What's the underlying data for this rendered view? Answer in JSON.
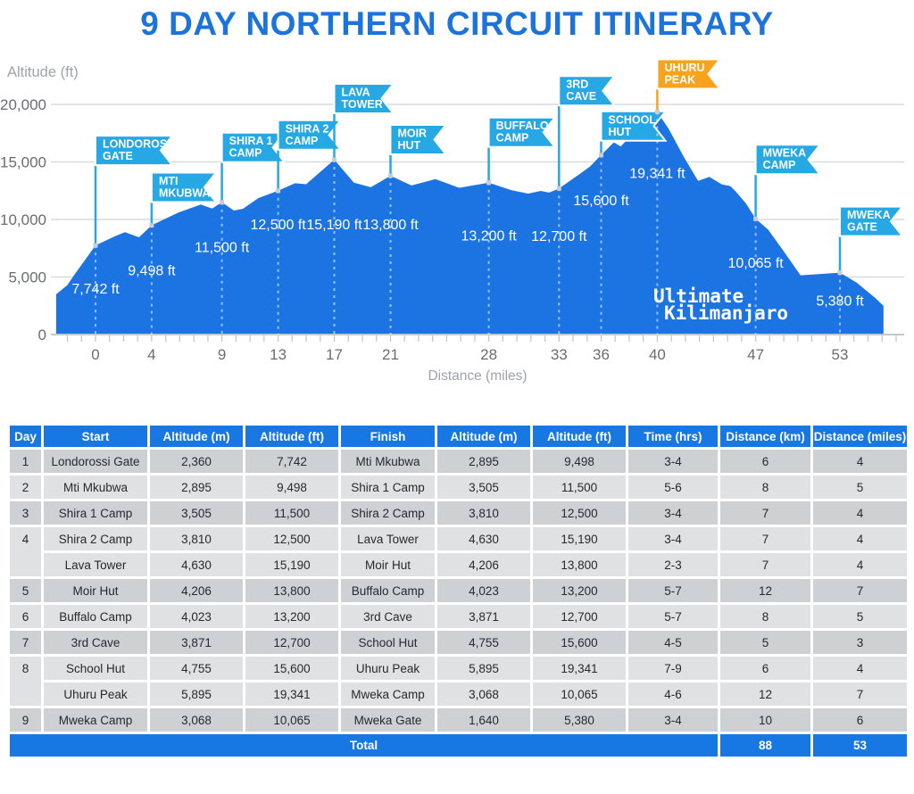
{
  "title": "9 DAY NORTHERN CIRCUIT ITINERARY",
  "colors": {
    "title_blue": "#1b73db",
    "area_blue": "#1c74e2",
    "flag_blue": "#25a8e4",
    "flag_orange": "#f9a21b",
    "table_header_blue": "#1777e3",
    "row_dark": "#cdd1d4",
    "row_light": "#dfe1e3",
    "gridline": "#d8dadd",
    "axis_line": "#c5c8cb",
    "tick_text": "#696c73",
    "axis_label_text": "#9fa2ac"
  },
  "chart_data": {
    "type": "area",
    "ylabel": "Altitude (ft)",
    "xlabel": "Distance (miles)",
    "ylim": [
      0,
      20000
    ],
    "grid": true,
    "watermark": [
      "Ultimate",
      "Kilimanjaro"
    ],
    "y_ticks": [
      {
        "value": 0,
        "label": "0"
      },
      {
        "value": 5000,
        "label": "5,000"
      },
      {
        "value": 10000,
        "label": "10,000"
      },
      {
        "value": 15000,
        "label": "15,000"
      },
      {
        "value": 20000,
        "label": "20,000"
      }
    ],
    "x_ticks": [
      {
        "mile": 0,
        "label": "0"
      },
      {
        "mile": 4,
        "label": "4"
      },
      {
        "mile": 9,
        "label": "9"
      },
      {
        "mile": 13,
        "label": "13"
      },
      {
        "mile": 17,
        "label": "17"
      },
      {
        "mile": 21,
        "label": "21"
      },
      {
        "mile": 28,
        "label": "28"
      },
      {
        "mile": 33,
        "label": "33"
      },
      {
        "mile": 36,
        "label": "36"
      },
      {
        "mile": 40,
        "label": "40"
      },
      {
        "mile": 47,
        "label": "47"
      },
      {
        "mile": 53,
        "label": "53"
      }
    ],
    "profile": [
      [
        -2.8,
        3500
      ],
      [
        -2,
        4300
      ],
      [
        -1.5,
        5200
      ],
      [
        0,
        7742
      ],
      [
        1.4,
        8550
      ],
      [
        2.1,
        8900
      ],
      [
        3.1,
        8450
      ],
      [
        4,
        9498
      ],
      [
        5.9,
        10600
      ],
      [
        7.5,
        11300
      ],
      [
        8.3,
        10950
      ],
      [
        9,
        11500
      ],
      [
        9.85,
        10775
      ],
      [
        10.5,
        10930
      ],
      [
        11.6,
        11860
      ],
      [
        13,
        12500
      ],
      [
        14.2,
        13150
      ],
      [
        15,
        13060
      ],
      [
        17,
        15190
      ],
      [
        18.4,
        13200
      ],
      [
        19.6,
        12800
      ],
      [
        21,
        13800
      ],
      [
        22.5,
        12950
      ],
      [
        24.2,
        13500
      ],
      [
        25.9,
        12750
      ],
      [
        28,
        13200
      ],
      [
        29.6,
        12550
      ],
      [
        30.8,
        12250
      ],
      [
        31.7,
        12480
      ],
      [
        32.3,
        12330
      ],
      [
        33,
        12700
      ],
      [
        34.3,
        13800
      ],
      [
        35.2,
        14600
      ],
      [
        36,
        15600
      ],
      [
        36.9,
        16700
      ],
      [
        37.4,
        16350
      ],
      [
        38.6,
        17900
      ],
      [
        39.4,
        18700
      ],
      [
        40,
        19341
      ],
      [
        40.8,
        17900
      ],
      [
        41.9,
        15400
      ],
      [
        42.9,
        13350
      ],
      [
        43.7,
        13700
      ],
      [
        44.6,
        13050
      ],
      [
        45.2,
        12900
      ],
      [
        45.6,
        12400
      ],
      [
        46.3,
        11400
      ],
      [
        47,
        10065
      ],
      [
        47.9,
        9100
      ],
      [
        48.9,
        7400
      ],
      [
        50.2,
        5150
      ],
      [
        51.6,
        5260
      ],
      [
        53,
        5380
      ],
      [
        54.2,
        4500
      ],
      [
        55.5,
        3200
      ],
      [
        56.1,
        2500
      ]
    ],
    "waypoints": [
      {
        "name": "Londorossi Gate",
        "lines": [
          "LONDOROSSI",
          "GATE"
        ],
        "mile": 0,
        "altitude_ft": 7742,
        "altitude_label": "7,742 ft",
        "flag_dy": 90,
        "flag_w": 86,
        "label_dy": 54
      },
      {
        "name": "Mti Mkubwa",
        "lines": [
          "MTI",
          "MKUBWA"
        ],
        "mile": 4,
        "altitude_ft": 9498,
        "altitude_label": "9,498 ft",
        "flag_dy": 26,
        "flag_w": 72,
        "label_dy": 56
      },
      {
        "name": "Shira 1 Camp",
        "lines": [
          "SHIRA 1",
          "CAMP"
        ],
        "mile": 9,
        "altitude_ft": 11500,
        "altitude_label": "11,500 ft",
        "flag_dy": 45,
        "flag_w": 70,
        "label_dy": 56
      },
      {
        "name": "Shira 2 Camp",
        "lines": [
          "SHIRA 2",
          "CAMP"
        ],
        "mile": 13,
        "altitude_ft": 12500,
        "altitude_label": "12,500 ft",
        "flag_dy": 46,
        "flag_w": 70,
        "label_dy": 43
      },
      {
        "name": "Lava Tower",
        "lines": [
          "LAVA",
          "TOWER"
        ],
        "mile": 17,
        "altitude_ft": 15190,
        "altitude_label": "15,190 ft",
        "flag_dy": 52,
        "flag_w": 66,
        "label_dy": 78
      },
      {
        "name": "Moir Hut",
        "lines": [
          "MOIR",
          "HUT"
        ],
        "mile": 21,
        "altitude_ft": 13800,
        "altitude_label": "13,800 ft",
        "flag_dy": 24,
        "flag_w": 62,
        "label_dy": 60
      },
      {
        "name": "Buffalo Camp",
        "lines": [
          "BUFFALO",
          "CAMP"
        ],
        "mile": 28,
        "altitude_ft": 13200,
        "altitude_label": "13,200 ft",
        "flag_dy": 40,
        "flag_w": 74,
        "label_dy": 65
      },
      {
        "name": "3rd Cave",
        "lines": [
          "3RD",
          "CAVE"
        ],
        "mile": 33,
        "altitude_ft": 12700,
        "altitude_label": "12,700 ft",
        "flag_dy": 93,
        "flag_w": 62,
        "label_dy": 59
      },
      {
        "name": "School Hut",
        "lines": [
          "SCHOOL",
          "HUT"
        ],
        "mile": 36,
        "altitude_ft": 15600,
        "altitude_label": "15,600 ft",
        "flag_dy": 16,
        "flag_w": 72,
        "label_dy": 56
      },
      {
        "name": "Uhuru Peak",
        "lines": [
          "UHURU",
          "PEAK"
        ],
        "mile": 40,
        "altitude_ft": 19341,
        "altitude_label": "19,341 ft",
        "flag_dy": 26,
        "flag_w": 70,
        "label_dy": 74,
        "accent": true
      },
      {
        "name": "Mweka Camp",
        "lines": [
          "MWEKA",
          "CAMP"
        ],
        "mile": 47,
        "altitude_ft": 10065,
        "altitude_label": "10,065 ft",
        "flag_dy": 50,
        "flag_w": 72,
        "label_dy": 55
      },
      {
        "name": "Mweka Gate",
        "lines": [
          "MWEKA",
          "GATE"
        ],
        "mile": 53,
        "altitude_ft": 5380,
        "altitude_label": "5,380 ft",
        "flag_dy": 41,
        "flag_w": 70,
        "label_dy": 37
      }
    ]
  },
  "table": {
    "headers": [
      "Day",
      "Start",
      "Altitude (m)",
      "Altitude (ft)",
      "Finish",
      "Altitude (m)",
      "Altitude (ft)",
      "Time (hrs)",
      "Distance (km)",
      "Distance (miles)"
    ],
    "rows": [
      {
        "day": "1",
        "span": 1,
        "shade": "dark",
        "cells": [
          "Londorossi Gate",
          "2,360",
          "7,742",
          "Mti Mkubwa",
          "2,895",
          "9,498",
          "3-4",
          "6",
          "4"
        ]
      },
      {
        "day": "2",
        "span": 1,
        "shade": "light",
        "cells": [
          "Mti Mkubwa",
          "2,895",
          "9,498",
          "Shira 1 Camp",
          "3,505",
          "11,500",
          "5-6",
          "8",
          "5"
        ]
      },
      {
        "day": "3",
        "span": 1,
        "shade": "dark",
        "cells": [
          "Shira 1 Camp",
          "3,505",
          "11,500",
          "Shira 2 Camp",
          "3,810",
          "12,500",
          "3-4",
          "7",
          "4"
        ]
      },
      {
        "day": "4",
        "span": 2,
        "shade": "light",
        "cells": [
          "Shira 2 Camp",
          "3,810",
          "12,500",
          "Lava Tower",
          "4,630",
          "15,190",
          "3-4",
          "7",
          "4"
        ]
      },
      {
        "day": null,
        "span": 0,
        "shade": "light",
        "cells": [
          "Lava Tower",
          "4,630",
          "15,190",
          "Moir Hut",
          "4,206",
          "13,800",
          "2-3",
          "7",
          "4"
        ]
      },
      {
        "day": "5",
        "span": 1,
        "shade": "dark",
        "cells": [
          "Moir Hut",
          "4,206",
          "13,800",
          "Buffalo Camp",
          "4,023",
          "13,200",
          "5-7",
          "12",
          "7"
        ]
      },
      {
        "day": "6",
        "span": 1,
        "shade": "light",
        "cells": [
          "Buffalo Camp",
          "4,023",
          "13,200",
          "3rd Cave",
          "3,871",
          "12,700",
          "5-7",
          "8",
          "5"
        ]
      },
      {
        "day": "7",
        "span": 1,
        "shade": "dark",
        "cells": [
          "3rd Cave",
          "3,871",
          "12,700",
          "School Hut",
          "4,755",
          "15,600",
          "4-5",
          "5",
          "3"
        ]
      },
      {
        "day": "8",
        "span": 2,
        "shade": "light",
        "cells": [
          "School Hut",
          "4,755",
          "15,600",
          "Uhuru Peak",
          "5,895",
          "19,341",
          "7-9",
          "6",
          "4"
        ]
      },
      {
        "day": null,
        "span": 0,
        "shade": "light",
        "cells": [
          "Uhuru Peak",
          "5,895",
          "19,341",
          "Mweka Camp",
          "3,068",
          "10,065",
          "4-6",
          "12",
          "7"
        ]
      },
      {
        "day": "9",
        "span": 1,
        "shade": "dark",
        "cells": [
          "Mweka Camp",
          "3,068",
          "10,065",
          "Mweka Gate",
          "1,640",
          "5,380",
          "3-4",
          "10",
          "6"
        ]
      }
    ],
    "total": {
      "label": "Total",
      "distance_km": "88",
      "distance_miles": "53"
    }
  }
}
